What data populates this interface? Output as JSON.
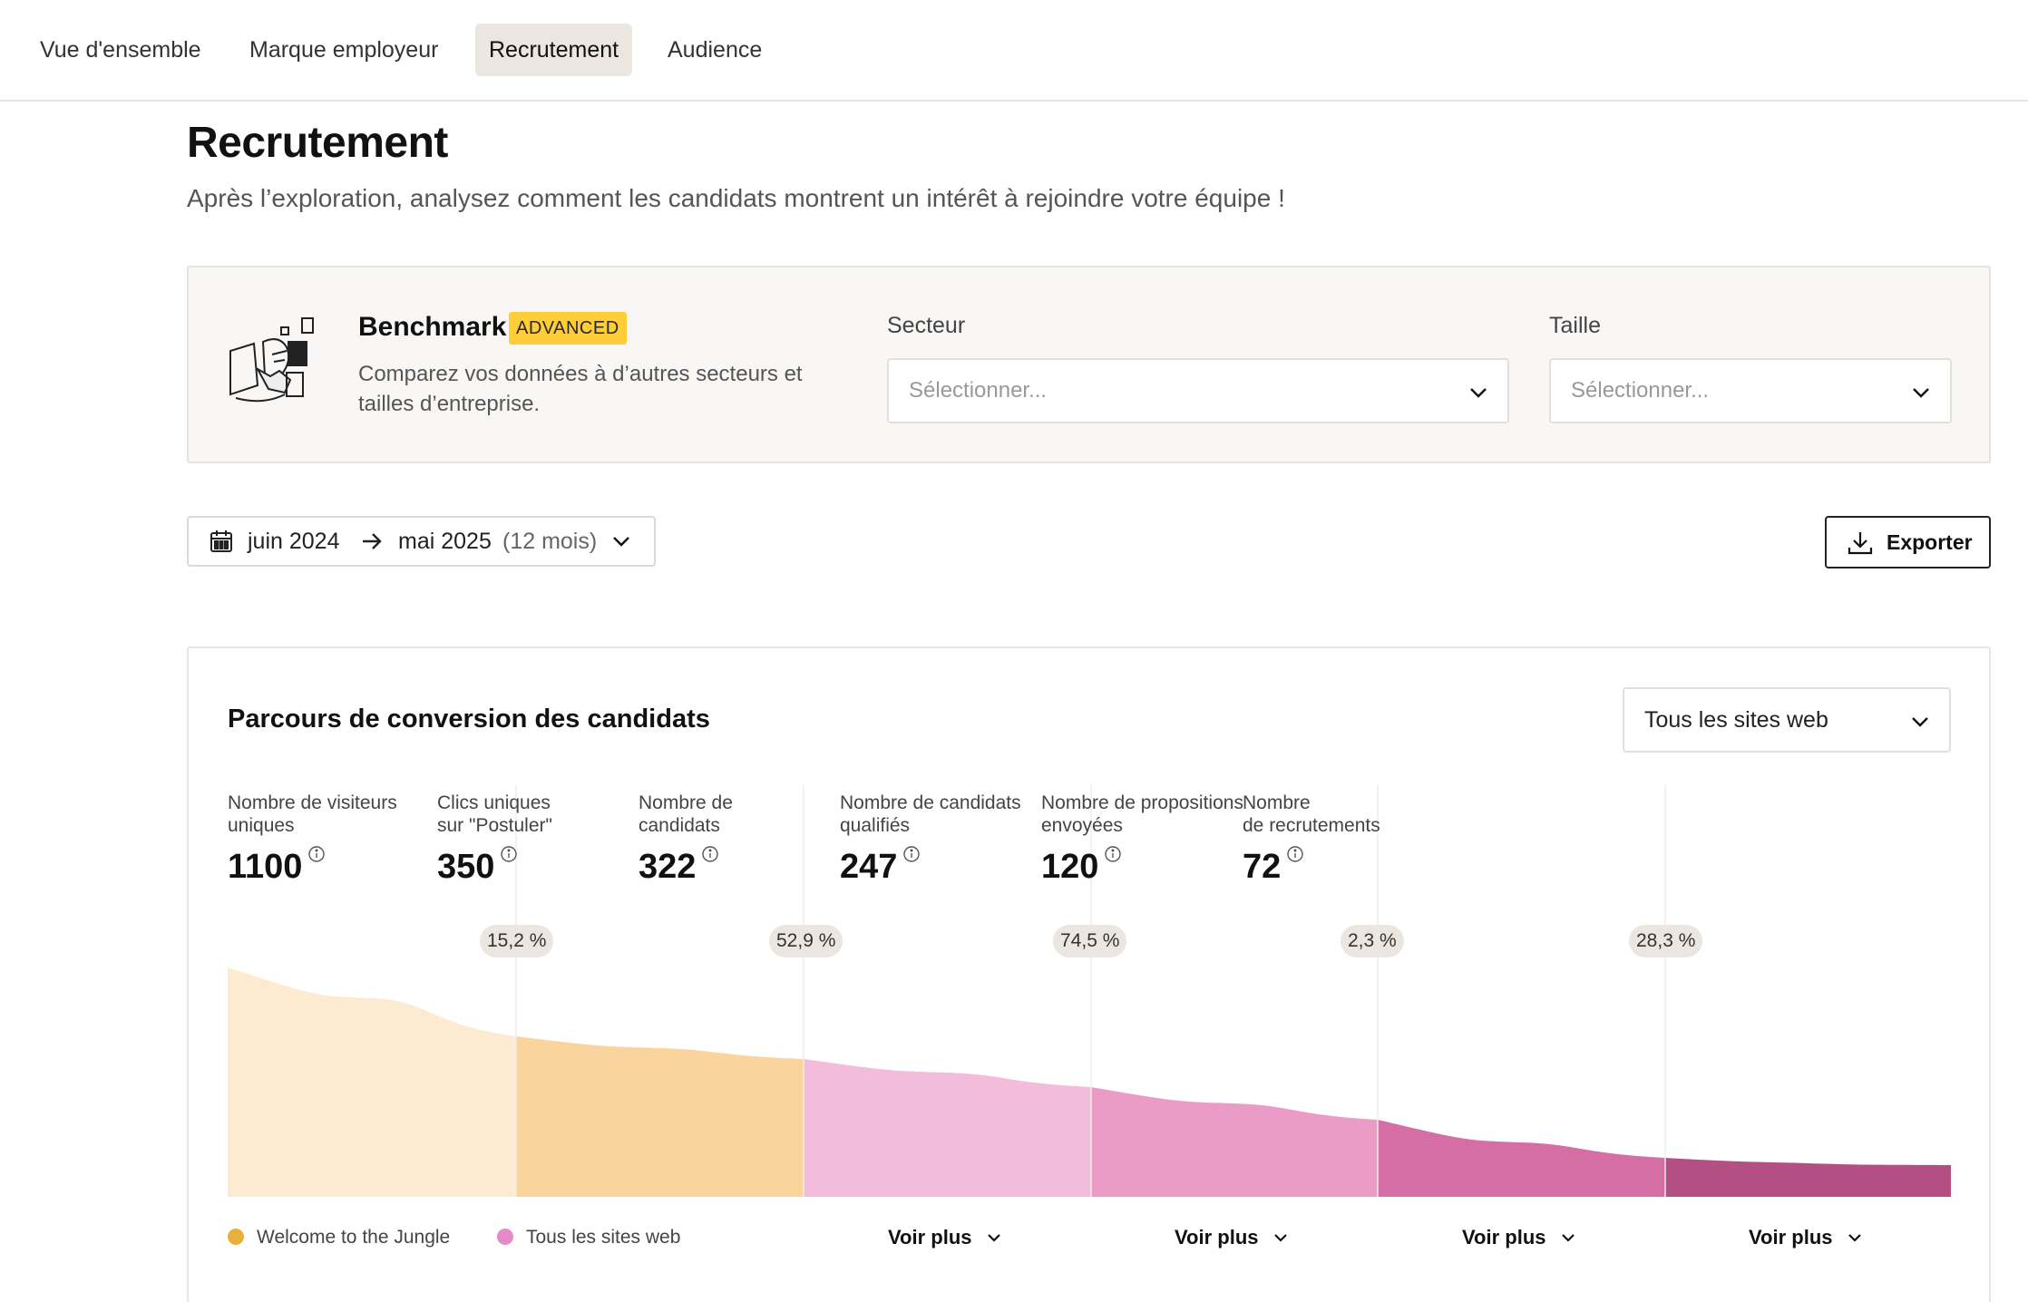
{
  "nav": {
    "tabs": [
      {
        "label": "Vue d'ensemble"
      },
      {
        "label": "Marque employeur"
      },
      {
        "label": "Recrutement"
      },
      {
        "label": "Audience"
      }
    ],
    "active_index": 2
  },
  "header": {
    "title": "Recrutement",
    "subtitle": "Après l’exploration, analysez comment les candidats montrent un intérêt à rejoindre votre équipe !"
  },
  "benchmark": {
    "title": "Benchmark",
    "badge": "ADVANCED",
    "description": "Comparez vos données à d’autres secteurs et tailles d’entreprise.",
    "sector_label": "Secteur",
    "sector_placeholder": "Sélectionner...",
    "size_label": "Taille",
    "size_placeholder": "Sélectionner..."
  },
  "date_range": {
    "start": "juin 2024",
    "end": "mai 2025",
    "duration": "(12 mois)"
  },
  "export": {
    "label": "Exporter"
  },
  "funnel": {
    "title": "Parcours de conversion des candidats",
    "site_filter": "Tous les sites web",
    "metrics": [
      {
        "label": "Nombre de visiteurs\nuniques",
        "value": "1100"
      },
      {
        "label": "Clics uniques\nsur \"Postuler\"",
        "value": "350"
      },
      {
        "label": "Nombre de\ncandidats",
        "value": "322"
      },
      {
        "label": "Nombre de candidats\nqualifiés",
        "value": "247"
      },
      {
        "label": "Nombre de propositions\nenvoyées",
        "value": "120"
      },
      {
        "label": "Nombre\nde recrutements",
        "value": "72"
      }
    ],
    "rates": [
      "15,2 %",
      "52,9 %",
      "74,5 %",
      "2,3 %",
      "28,3 %"
    ],
    "legend": [
      {
        "label": "Welcome to the Jungle",
        "color": "#e8b23a"
      },
      {
        "label": "Tous les sites web",
        "color": "#e58cc8"
      }
    ],
    "voir_plus": [
      "Voir plus",
      "Voir plus",
      "Voir plus",
      "Voir plus"
    ],
    "stage_colors": [
      "#fcebd1",
      "#f9d59d",
      "#f3bcdb",
      "#ea9cc7",
      "#d66ea6",
      "#b44f83"
    ]
  }
}
